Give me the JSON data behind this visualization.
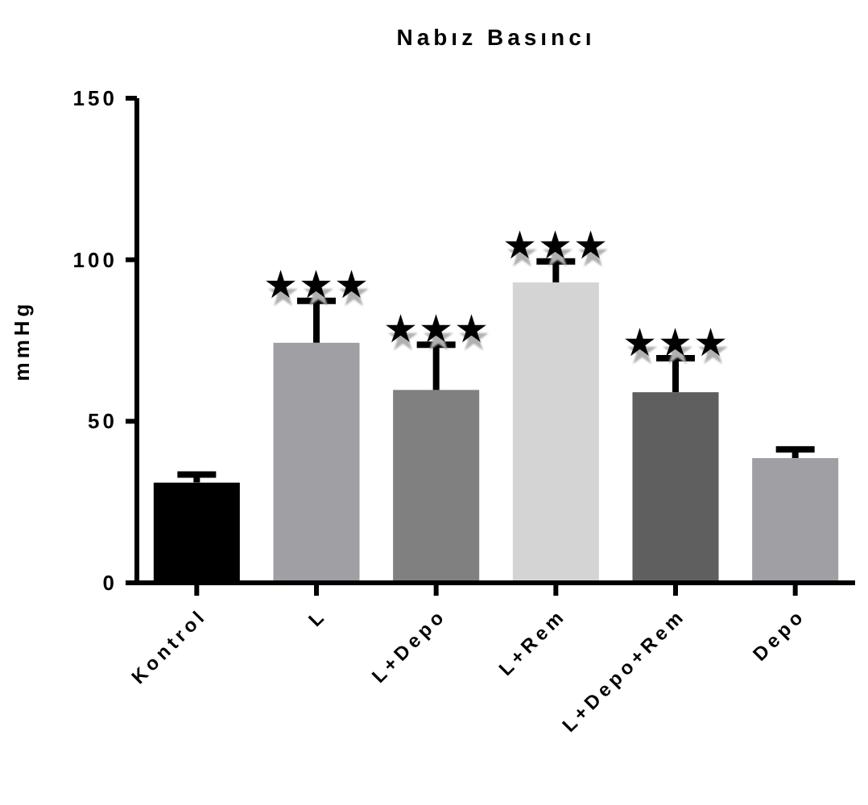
{
  "chart_data": {
    "type": "bar",
    "title": "Nabız Basıncı",
    "ylabel": "mmHg",
    "categories": [
      "Kontrol",
      "L",
      "L+Depo",
      "L+Rem",
      "L+Depo+Rem",
      "Depo"
    ],
    "values": [
      31,
      74.3,
      59.7,
      93,
      59,
      38.6
    ],
    "colors": [
      "#000000",
      "#a09fa4",
      "#808080",
      "#d4d4d4",
      "#5f5f5f",
      "#a09fa4"
    ],
    "errors": [
      [
        31,
        33.5
      ],
      [
        74.3,
        87.3
      ],
      [
        59.7,
        73.7
      ],
      [
        93,
        99.5
      ],
      [
        59,
        69.5
      ],
      [
        38.6,
        41.3
      ]
    ],
    "ylim": [
      0,
      150
    ],
    "yticks": [
      0,
      50,
      100,
      150
    ],
    "grid": false,
    "annotations": [
      {
        "text": "★★★",
        "x": "L",
        "y": 87.3
      },
      {
        "text": "★★★",
        "x": "L+Depo",
        "y": 73.7
      },
      {
        "text": "★★★",
        "x": "L+Rem",
        "y": 99.5
      },
      {
        "text": "★★★",
        "x": "L+Depo+Rem",
        "y": 69.5
      }
    ]
  }
}
